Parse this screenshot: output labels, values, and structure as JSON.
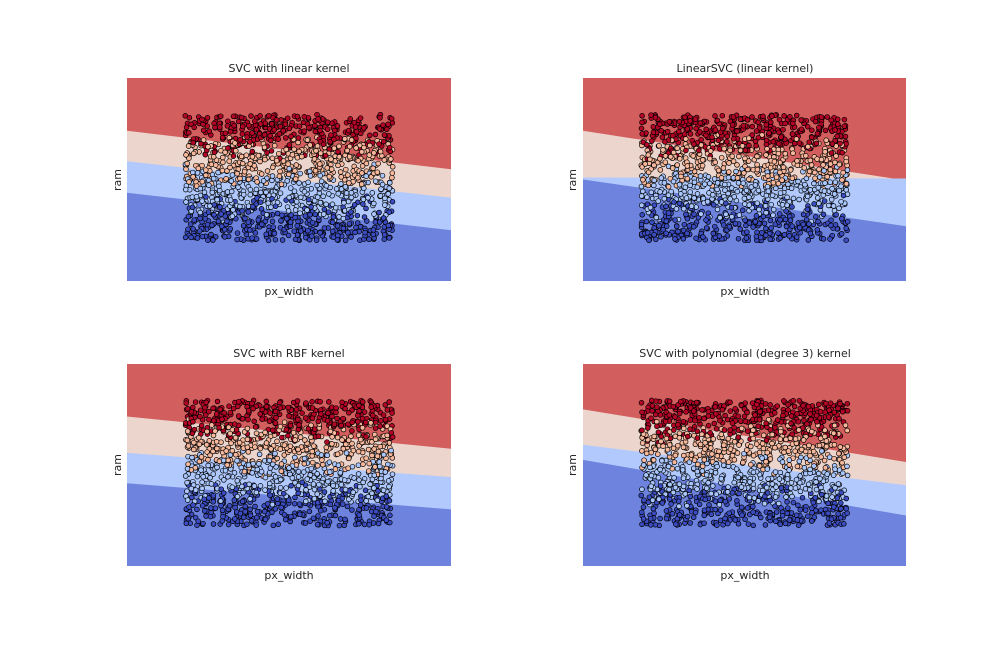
{
  "figure": {
    "background": "#ffffff"
  },
  "palette": {
    "class_0": "#3b4cc0",
    "class_1": "#aac7fd",
    "class_2": "#f7b89c",
    "class_3": "#b40426",
    "region_0": "#6d83de",
    "region_1": "#b1c9fc",
    "region_2": "#ecd5cd",
    "region_3": "#d25e5e",
    "marker_edge": "#000000"
  },
  "chart_data": [
    {
      "type": "scatter",
      "title": "SVC with linear kernel",
      "xlabel": "px_width",
      "ylabel": "ram",
      "grid": false,
      "xticks": false,
      "yticks": false,
      "xlim": [
        -1,
        1
      ],
      "ylim": [
        -1,
        1
      ],
      "points_range": {
        "x": [
          -0.64,
          0.64
        ],
        "y": [
          -0.6,
          0.64
        ],
        "count": 1400
      },
      "decision_boundaries": [
        {
          "between": [
            "region_0",
            "region_1"
          ],
          "left_y": -0.13,
          "right_y": -0.5
        },
        {
          "between": [
            "region_1",
            "region_2"
          ],
          "left_y": 0.18,
          "right_y": -0.18
        },
        {
          "between": [
            "region_2",
            "region_3"
          ],
          "left_y": 0.48,
          "right_y": 0.1
        }
      ]
    },
    {
      "type": "scatter",
      "title": "LinearSVC (linear kernel)",
      "xlabel": "px_width",
      "ylabel": "ram",
      "grid": false,
      "xticks": false,
      "yticks": false,
      "xlim": [
        -1,
        1
      ],
      "ylim": [
        -1,
        1
      ],
      "points_range": {
        "x": [
          -0.64,
          0.64
        ],
        "y": [
          -0.6,
          0.64
        ],
        "count": 1400
      },
      "decision_boundaries": [
        {
          "between": [
            "region_0",
            "region_1"
          ],
          "left_y": 0.0,
          "right_y": -0.46
        },
        {
          "between": [
            "region_1",
            "region_2"
          ],
          "left_y": 0.02,
          "right_y": 0.01
        },
        {
          "between": [
            "region_2",
            "region_3"
          ],
          "left_y": 0.48,
          "right_y": -0.01
        }
      ]
    },
    {
      "type": "scatter",
      "title": "SVC with RBF kernel",
      "xlabel": "px_width",
      "ylabel": "ram",
      "grid": false,
      "xticks": false,
      "yticks": false,
      "xlim": [
        -1,
        1
      ],
      "ylim": [
        -1,
        1
      ],
      "points_range": {
        "x": [
          -0.64,
          0.64
        ],
        "y": [
          -0.6,
          0.64
        ],
        "count": 1400
      },
      "decision_boundaries": [
        {
          "between": [
            "region_0",
            "region_1"
          ],
          "left_y": -0.18,
          "right_y": -0.44
        },
        {
          "between": [
            "region_1",
            "region_2"
          ],
          "left_y": 0.12,
          "right_y": -0.12
        },
        {
          "between": [
            "region_2",
            "region_3"
          ],
          "left_y": 0.48,
          "right_y": 0.16
        }
      ]
    },
    {
      "type": "scatter",
      "title": "SVC with polynomial (degree 3) kernel",
      "xlabel": "px_width",
      "ylabel": "ram",
      "grid": false,
      "xticks": false,
      "yticks": false,
      "xlim": [
        -1,
        1
      ],
      "ylim": [
        -1,
        1
      ],
      "points_range": {
        "x": [
          -0.64,
          0.64
        ],
        "y": [
          -0.6,
          0.64
        ],
        "count": 1400
      },
      "decision_boundaries": [
        {
          "between": [
            "region_0",
            "region_1"
          ],
          "left_y": 0.05,
          "right_y": -0.5
        },
        {
          "between": [
            "region_1",
            "region_2"
          ],
          "left_y": 0.2,
          "right_y": -0.2
        },
        {
          "between": [
            "region_2",
            "region_3"
          ],
          "left_y": 0.55,
          "right_y": 0.03
        }
      ]
    }
  ]
}
